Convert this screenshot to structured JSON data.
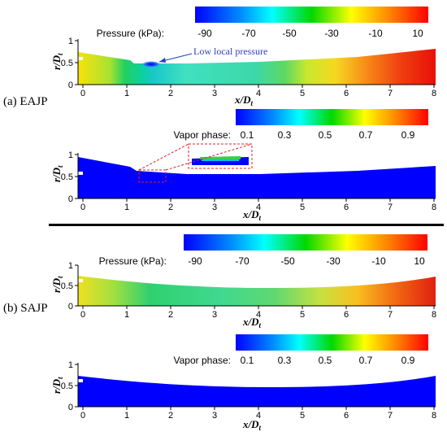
{
  "panels": [
    {
      "label": "(a) EAJP",
      "pressure": {
        "title": "Pressure (kPa):",
        "ticks": [
          "-90",
          "-70",
          "-50",
          "-30",
          "-10",
          "10"
        ],
        "annotation": "Low local pressure"
      },
      "vapor": {
        "title": "Vapor phase:",
        "ticks": [
          "0.1",
          "0.3",
          "0.5",
          "0.7",
          "0.9"
        ]
      }
    },
    {
      "label": "(b) SAJP",
      "pressure": {
        "title": "Pressure (kPa):",
        "ticks": [
          "-90",
          "-70",
          "-50",
          "-30",
          "-10",
          "10"
        ]
      },
      "vapor": {
        "title": "Vapor phase:",
        "ticks": [
          "0.1",
          "0.3",
          "0.5",
          "0.7",
          "0.9"
        ]
      }
    }
  ],
  "axes": {
    "x_label_main": "x",
    "x_label_denom": "/D",
    "x_label_sub": "t",
    "y_label_main": "r",
    "y_label_denom": "/D",
    "y_label_sub": "t",
    "x_ticks": [
      "0",
      "1",
      "2",
      "3",
      "4",
      "5",
      "6",
      "7",
      "8"
    ],
    "y_ticks": [
      "0",
      "0.5",
      "1"
    ]
  }
}
